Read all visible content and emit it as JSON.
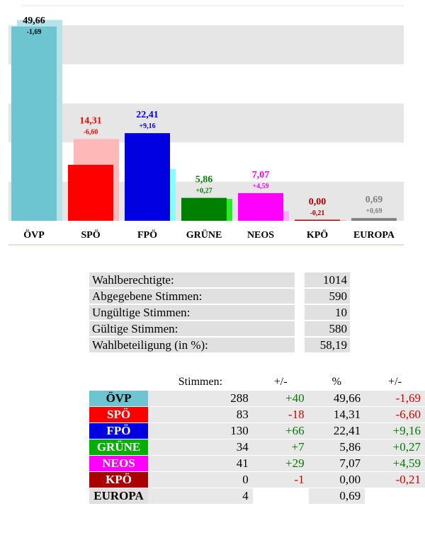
{
  "chart_data": {
    "type": "bar",
    "categories": [
      "ÖVP",
      "SPÖ",
      "FPÖ",
      "GRÜNE",
      "NEOS",
      "KPÖ",
      "EUROPA"
    ],
    "values": [
      49.66,
      14.31,
      22.41,
      5.86,
      7.07,
      0.0,
      0.69
    ],
    "value_labels": [
      "49,66",
      "14,31",
      "22,41",
      "5,86",
      "7,07",
      "0,00",
      "0,69"
    ],
    "previous_values": [
      51.35,
      20.91,
      13.25,
      5.59,
      2.48,
      0.21,
      0.0
    ],
    "changes": [
      -1.69,
      -6.6,
      9.16,
      0.27,
      4.59,
      -0.21,
      0.69
    ],
    "change_labels": [
      "-1,69",
      "-6,60",
      "+9,16",
      "+0,27",
      "+4,59",
      "-0,21",
      "+0,69"
    ],
    "colors": [
      "#6cc5d0",
      "#ff0000",
      "#0000e0",
      "#008000",
      "#ff00ff",
      "#aa0000",
      "#808080"
    ],
    "previous_colors": [
      "#b6e3e8",
      "#ffb8b8",
      "#88ffff",
      "#22ee22",
      "#ffaaff",
      "#ffaaaa",
      "#c8c8c8"
    ],
    "label_colors": [
      "#000000",
      "#ff0000",
      "#0000e0",
      "#008000",
      "#ff00ff",
      "#aa0000",
      "#808080"
    ],
    "ylim": [
      0,
      55
    ],
    "grid": "alternating gray bands"
  },
  "stats": [
    {
      "label": "Wahlberechtigte:",
      "value": "1014"
    },
    {
      "label": "Abgegebene Stimmen:",
      "value": "590"
    },
    {
      "label": "Ungültige Stimmen:",
      "value": "10"
    },
    {
      "label": "Gültige Stimmen:",
      "value": "580"
    },
    {
      "label": "Wahlbeteiligung (in %):",
      "value": "58,19"
    }
  ],
  "results": {
    "headers": {
      "stimmen": "Stimmen:",
      "diff1": "+/-",
      "pct": "%",
      "diff2": "+/-"
    },
    "rows": [
      {
        "party": "ÖVP",
        "color": "#6cc5d0",
        "text_color": "#000000",
        "stimmen": "288",
        "diff1": "+40",
        "pct": "49,66",
        "diff2": "-1,69"
      },
      {
        "party": "SPÖ",
        "color": "#ff0000",
        "text_color": "#ffffff",
        "stimmen": "83",
        "diff1": "-18",
        "pct": "14,31",
        "diff2": "-6,60"
      },
      {
        "party": "FPÖ",
        "color": "#0000e0",
        "text_color": "#ffffff",
        "stimmen": "130",
        "diff1": "+66",
        "pct": "22,41",
        "diff2": "+9,16"
      },
      {
        "party": "GRÜNE",
        "color": "#00b000",
        "text_color": "#ffffff",
        "stimmen": "34",
        "diff1": "+7",
        "pct": "5,86",
        "diff2": "+0,27"
      },
      {
        "party": "NEOS",
        "color": "#ff00ff",
        "text_color": "#ffffff",
        "stimmen": "41",
        "diff1": "+29",
        "pct": "7,07",
        "diff2": "+4,59"
      },
      {
        "party": "KPÖ",
        "color": "#aa0000",
        "text_color": "#ffffff",
        "stimmen": "0",
        "diff1": "-1",
        "pct": "0,00",
        "diff2": "-0,21"
      },
      {
        "party": "EUROPA",
        "color": "#e0e0e0",
        "text_color": "#000000",
        "stimmen": "4",
        "diff1": "",
        "pct": "0,69",
        "diff2": ""
      }
    ]
  }
}
